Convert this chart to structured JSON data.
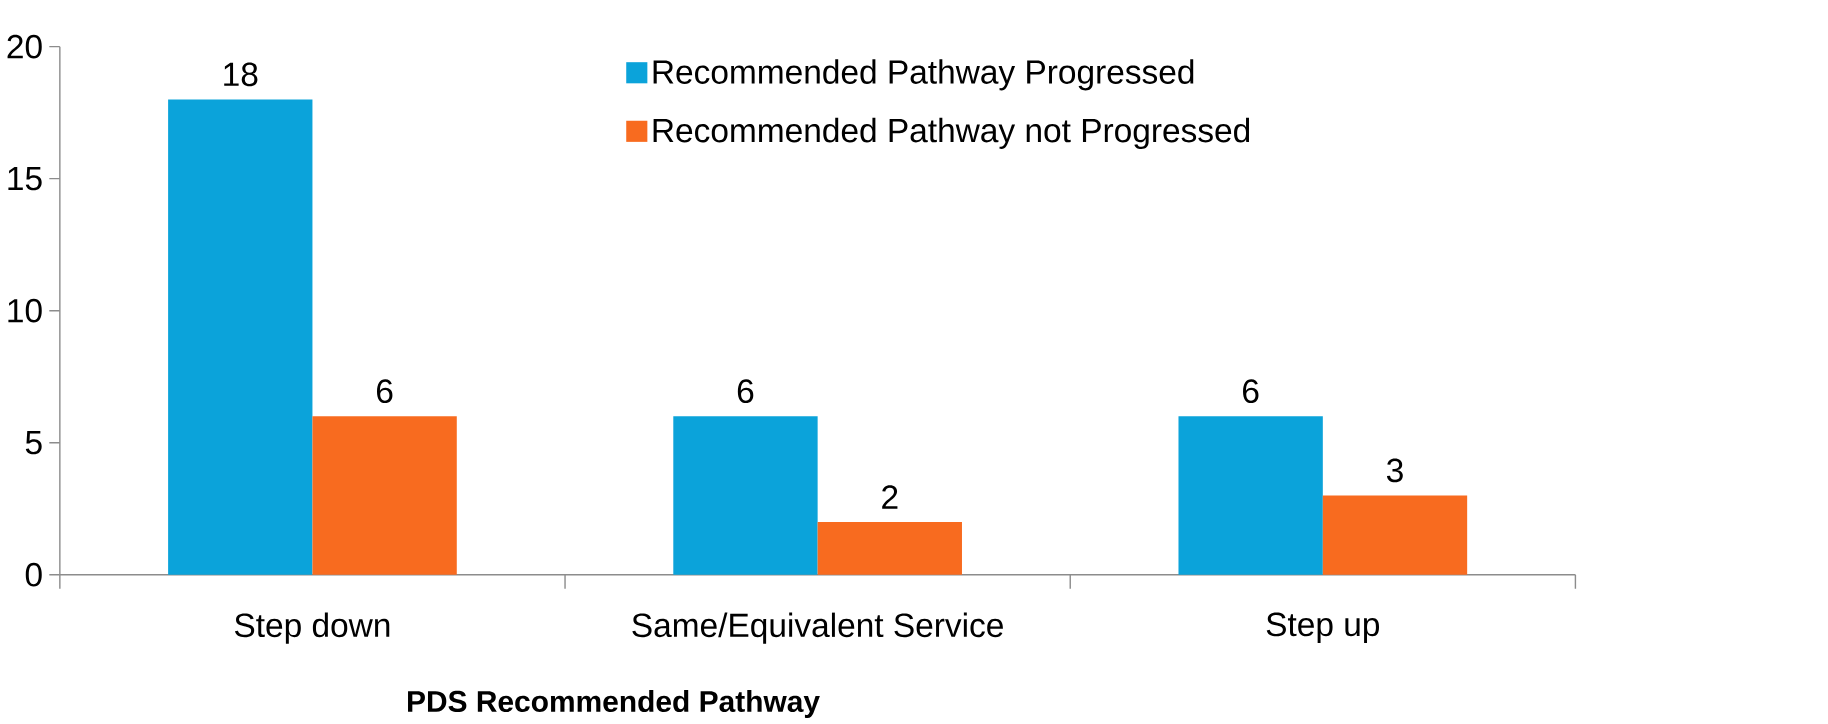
{
  "chart_data": {
    "type": "bar",
    "xlabel": "PDS Recommended Pathway",
    "categories": [
      "Step down",
      "Same/Equivalent Service",
      "Step up"
    ],
    "series": [
      {
        "name": "Recommended Pathway Progressed",
        "color": "#0ba3da",
        "values": [
          18,
          6,
          6
        ]
      },
      {
        "name": "Recommended  Pathway not Progressed",
        "color": "#f86b1f",
        "values": [
          6,
          2,
          3
        ]
      }
    ],
    "ylim": [
      0,
      20
    ],
    "yticks": [
      0,
      5,
      10,
      15,
      20
    ],
    "data_labels": true,
    "legend": "top right",
    "grid": false
  }
}
